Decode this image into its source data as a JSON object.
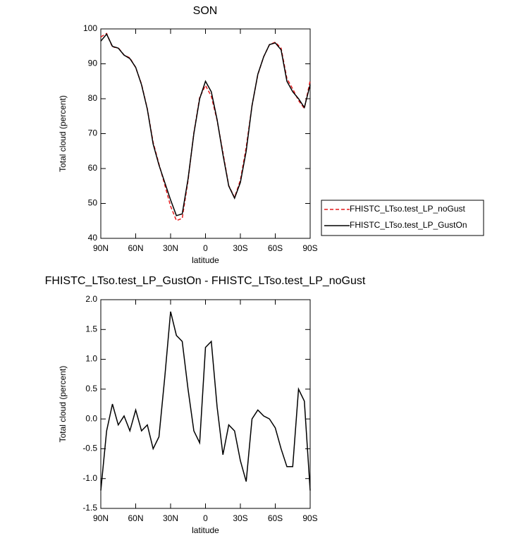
{
  "chart_data": [
    {
      "type": "line",
      "title": "SON",
      "xlabel": "latitude",
      "ylabel": "Total cloud (percent)",
      "x": [
        90,
        85,
        80,
        75,
        70,
        65,
        60,
        55,
        50,
        45,
        40,
        35,
        30,
        25,
        20,
        15,
        10,
        5,
        0,
        -5,
        -10,
        -15,
        -20,
        -25,
        -30,
        -35,
        -40,
        -45,
        -50,
        -55,
        -60,
        -65,
        -70,
        -75,
        -80,
        -85,
        -90
      ],
      "series": [
        {
          "name": "FHISTC_LTso.test_LP_noGust",
          "color": "#e41a1c",
          "dash": true,
          "values": [
            97.7,
            98.7,
            94.8,
            94.6,
            92.5,
            91.7,
            88.9,
            84.2,
            77.1,
            67.5,
            61.3,
            55.3,
            49.2,
            45.1,
            45.7,
            56.5,
            70.2,
            80.4,
            83.8,
            80.7,
            73.8,
            64.6,
            55.1,
            51.7,
            56.7,
            66.1,
            78,
            86.9,
            92,
            95.5,
            96.2,
            94.5,
            85.8,
            82.8,
            79.5,
            77.2,
            85.2
          ]
        },
        {
          "name": "FHISTC_LTso.test_LP_GustOn",
          "color": "#000000",
          "dash": false,
          "values": [
            96.5,
            98.5,
            95,
            94.5,
            92.5,
            91.5,
            89,
            84,
            77,
            67,
            61,
            56,
            51,
            46.5,
            47,
            57,
            70,
            80,
            85,
            82,
            74,
            64,
            55,
            51.5,
            56,
            65,
            78,
            87,
            92,
            95.5,
            96,
            94,
            85,
            82,
            80,
            77.5,
            84
          ]
        }
      ],
      "xlim": [
        90,
        -90
      ],
      "xticks": [
        {
          "value": 90,
          "label": "90N"
        },
        {
          "value": 60,
          "label": "60N"
        },
        {
          "value": 30,
          "label": "30N"
        },
        0,
        {
          "value": -30,
          "label": "30S"
        },
        {
          "value": -60,
          "label": "60S"
        },
        {
          "value": -90,
          "label": "90S"
        }
      ],
      "ylim": [
        40,
        100
      ],
      "yticks": [
        40,
        50,
        60,
        70,
        80,
        90,
        100
      ],
      "legend": "right"
    },
    {
      "type": "line",
      "title": "FHISTC_LTso.test_LP_GustOn - FHISTC_LTso.test_LP_noGust",
      "xlabel": "latitude",
      "ylabel": "Total cloud (percent)",
      "x": [
        90,
        85,
        80,
        75,
        70,
        65,
        60,
        55,
        50,
        45,
        40,
        35,
        30,
        25,
        20,
        15,
        10,
        5,
        0,
        -5,
        -10,
        -15,
        -20,
        -25,
        -30,
        -35,
        -40,
        -45,
        -50,
        -55,
        -60,
        -65,
        -70,
        -75,
        -80,
        -85,
        -90
      ],
      "values": [
        -1.2,
        -0.2,
        0.25,
        -0.1,
        0.05,
        -0.2,
        0.15,
        -0.2,
        -0.1,
        -0.5,
        -0.3,
        0.7,
        1.8,
        1.4,
        1.3,
        0.5,
        -0.2,
        -0.4,
        1.2,
        1.3,
        0.2,
        -0.6,
        -0.1,
        -0.2,
        -0.7,
        -1.05,
        0.0,
        0.15,
        0.05,
        0.0,
        -0.15,
        -0.5,
        -0.8,
        -0.8,
        0.5,
        0.3,
        -1.2
      ],
      "color": "#000000",
      "xlim": [
        90,
        -90
      ],
      "xticks": [
        {
          "value": 90,
          "label": "90N"
        },
        {
          "value": 60,
          "label": "60N"
        },
        {
          "value": 30,
          "label": "30N"
        },
        0,
        {
          "value": -30,
          "label": "30S"
        },
        {
          "value": -60,
          "label": "60S"
        },
        {
          "value": -90,
          "label": "90S"
        }
      ],
      "ylim": [
        -1.5,
        2
      ],
      "yticks": [
        -1.5,
        {
          "value": -1,
          "label": "-1.0"
        },
        -0.5,
        {
          "value": 0,
          "label": "0.0"
        },
        0.5,
        {
          "value": 1,
          "label": "1.0"
        },
        1.5,
        {
          "value": 2,
          "label": "2.0"
        }
      ]
    }
  ]
}
